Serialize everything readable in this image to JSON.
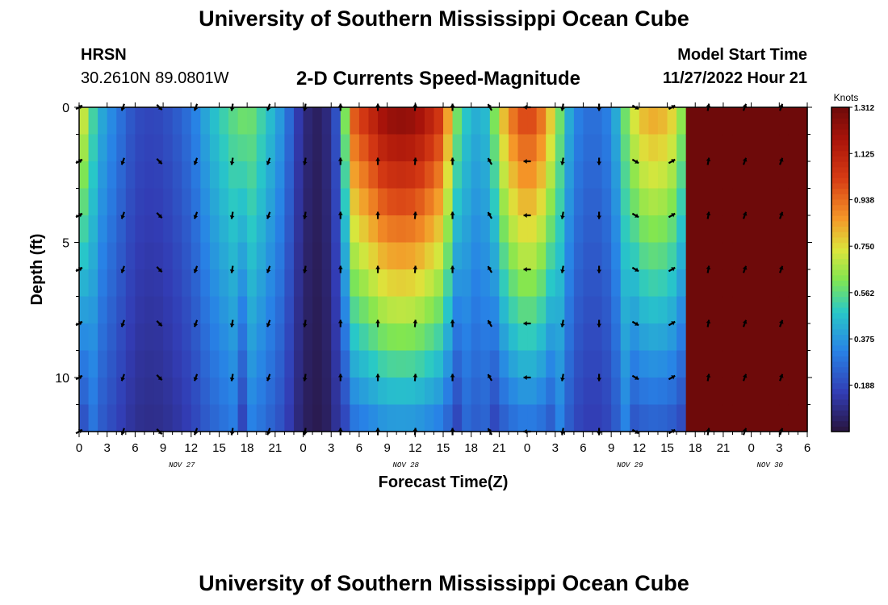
{
  "header": {
    "title": "University of Southern Mississippi Ocean Cube",
    "station": "HRSN",
    "coordinates": "30.2610N  89.0801W",
    "subtitle": "2-D Currents Speed-Magnitude",
    "model_start_label": "Model Start Time",
    "model_start_value": "11/27/2022 Hour 21"
  },
  "footer": {
    "title": "University of Southern Mississippi Ocean Cube"
  },
  "chart_data": {
    "type": "heatmap",
    "title": "2-D Currents Speed-Magnitude",
    "xlabel": "Forecast Time(Z)",
    "ylabel": "Depth (ft)",
    "x_unit": "hours since Nov 27 00Z",
    "xlim": [
      0,
      78
    ],
    "ylim": [
      0,
      12
    ],
    "y_inverted": true,
    "x_ticks": [
      0,
      3,
      6,
      9,
      12,
      15,
      18,
      21,
      24,
      27,
      30,
      33,
      36,
      39,
      42,
      45,
      48,
      51,
      54,
      57,
      60,
      63,
      66,
      69,
      72,
      75,
      78
    ],
    "x_tick_labels": [
      "0",
      "3",
      "6",
      "9",
      "12",
      "15",
      "18",
      "21",
      "0",
      "3",
      "6",
      "9",
      "12",
      "15",
      "18",
      "21",
      "0",
      "3",
      "6",
      "9",
      "12",
      "15",
      "18",
      "21",
      "0",
      "3",
      "6"
    ],
    "y_ticks": [
      0,
      5,
      10
    ],
    "y_tick_labels": [
      "0",
      "5",
      "10"
    ],
    "date_labels": [
      {
        "text": "NOV 27",
        "hour": 11
      },
      {
        "text": "NOV 28",
        "hour": 35
      },
      {
        "text": "NOV 29",
        "hour": 59
      },
      {
        "text": "NOV 30",
        "hour": 74
      }
    ],
    "colorbar": {
      "label": "Knots",
      "min": 0,
      "max": 1.312,
      "tick_values": [
        1.312,
        1.125,
        0.938,
        0.75,
        0.562,
        0.375,
        0.188
      ],
      "tick_labels": [
        "1.312",
        "1.125",
        "0.938",
        "0.750",
        "0.562",
        "0.375",
        "0.188"
      ]
    },
    "time_hours": [
      0,
      4,
      8,
      12,
      16,
      20,
      24,
      27,
      30,
      33,
      36,
      39,
      42,
      45,
      48,
      51,
      54,
      57,
      60,
      63,
      66,
      69,
      72,
      75,
      78
    ],
    "speed_profile": {
      "hours": [
        0,
        1,
        2,
        4,
        6,
        8,
        10,
        12,
        14,
        16,
        18,
        20,
        22,
        23,
        24,
        25,
        26,
        27,
        28,
        29,
        30,
        31,
        32,
        33,
        34,
        35,
        36,
        37,
        38,
        39,
        40,
        41,
        42,
        43,
        44,
        45,
        46,
        47,
        48,
        49,
        50,
        51,
        52,
        53,
        54,
        55,
        56,
        57,
        58,
        59,
        60,
        61,
        62,
        63,
        64,
        65,
        66,
        67,
        68,
        69,
        70,
        71,
        72,
        73,
        74,
        75,
        76,
        77,
        78
      ],
      "surface": [
        0.82,
        0.62,
        0.45,
        0.32,
        0.2,
        0.18,
        0.22,
        0.3,
        0.45,
        0.55,
        0.62,
        0.5,
        0.35,
        0.2,
        0.1,
        0.05,
        0.05,
        0.12,
        0.3,
        0.95,
        1.05,
        1.1,
        1.2,
        1.25,
        1.27,
        1.27,
        1.25,
        1.2,
        1.12,
        1.05,
        0.7,
        0.52,
        0.45,
        0.42,
        0.5,
        0.75,
        0.9,
        1.0,
        1.05,
        1.0,
        0.9,
        0.7,
        0.5,
        0.35,
        0.3,
        0.28,
        0.3,
        0.35,
        0.5,
        0.7,
        0.8,
        0.85,
        0.85,
        0.82,
        0.75,
        0.55
      ],
      "depth_decay": 0.055
    },
    "vectors": {
      "hours": [
        0,
        4.7,
        8.6,
        12.5,
        16.4,
        20.3,
        24.2,
        28,
        32,
        36,
        40,
        44,
        48,
        51.8,
        55.7,
        59.6,
        63.5,
        67.4,
        71.3,
        75.2
      ],
      "depths": [
        0,
        2,
        4,
        6,
        8,
        10,
        12
      ],
      "direction_deg_by_time": [
        60,
        200,
        135,
        200,
        190,
        200,
        190,
        0,
        0,
        5,
        0,
        330,
        270,
        190,
        180,
        120,
        60,
        10,
        20,
        20
      ]
    }
  }
}
